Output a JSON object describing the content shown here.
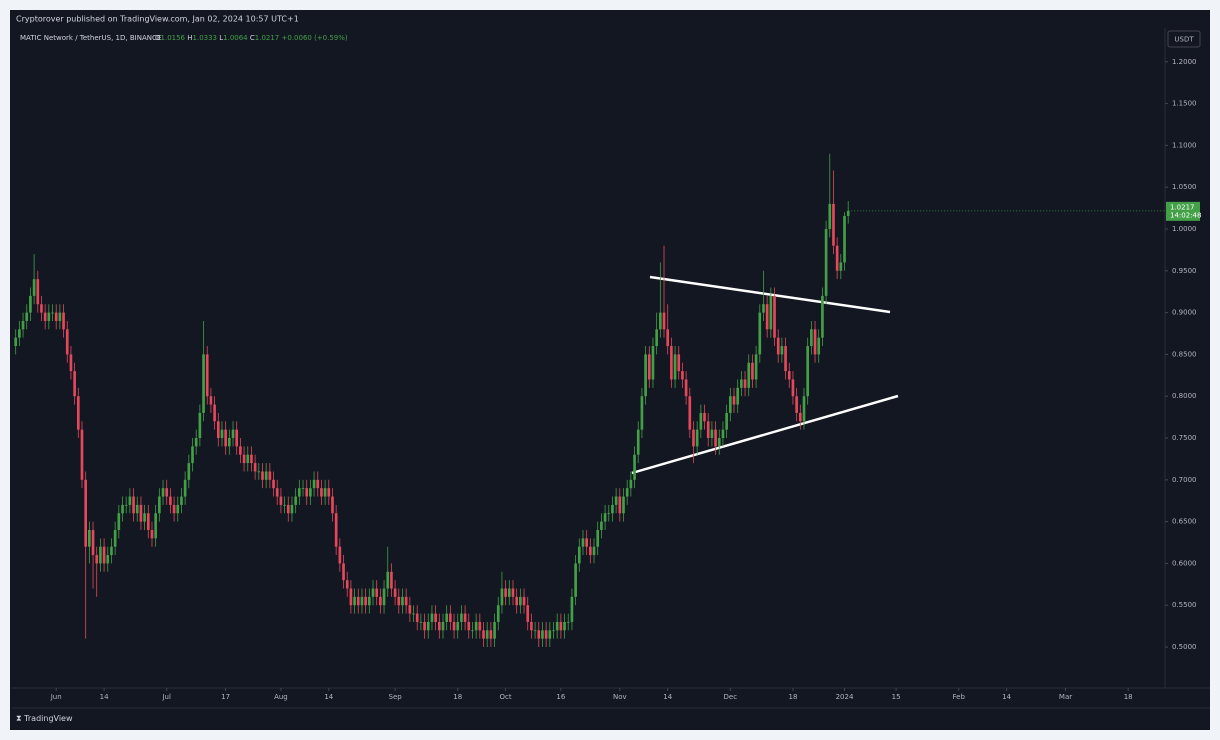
{
  "header": {
    "publisher": "Cryptorover published on TradingView.com, Jan 02, 2024 10:57 UTC+1",
    "symbol": "MATIC Network / TetherUS, 1D, BINANCE",
    "change": "+0.0060 (+0.59%)",
    "currency": "USDT",
    "countdown": "14:02:48",
    "brand": "TradingView"
  },
  "chart_data": {
    "type": "candlestick",
    "up_color": "#43a047",
    "down_color": "#e5485a",
    "grid": false,
    "ylim": [
      0.451,
      1.238
    ],
    "yticks": [
      {
        "value": 0.5,
        "label": "0.5000"
      },
      {
        "value": 0.55,
        "label": "0.5500"
      },
      {
        "value": 0.6,
        "label": "0.6000"
      },
      {
        "value": 0.65,
        "label": "0.6500"
      },
      {
        "value": 0.7,
        "label": "0.7000"
      },
      {
        "value": 0.75,
        "label": "0.7500"
      },
      {
        "value": 0.8,
        "label": "0.8000"
      },
      {
        "value": 0.85,
        "label": "0.8500"
      },
      {
        "value": 0.9,
        "label": "0.9000"
      },
      {
        "value": 0.95,
        "label": "0.9500"
      },
      {
        "value": 1.0,
        "label": "1.0000"
      },
      {
        "value": 1.05,
        "label": "1.0500"
      },
      {
        "value": 1.1,
        "label": "1.1000"
      },
      {
        "value": 1.15,
        "label": "1.1500"
      },
      {
        "value": 1.2,
        "label": "1.2000"
      }
    ],
    "xlim": [
      "2023-05-20",
      "2024-03-28"
    ],
    "xticks": [
      {
        "value": "2023-06-01",
        "label": "Jun"
      },
      {
        "value": "2023-06-14",
        "label": "14"
      },
      {
        "value": "2023-07-01",
        "label": "Jul"
      },
      {
        "value": "2023-07-17",
        "label": "17"
      },
      {
        "value": "2023-08-01",
        "label": "Aug"
      },
      {
        "value": "2023-08-14",
        "label": "14"
      },
      {
        "value": "2023-09-01",
        "label": "Sep"
      },
      {
        "value": "2023-09-18",
        "label": "18"
      },
      {
        "value": "2023-10-01",
        "label": "Oct"
      },
      {
        "value": "2023-10-16",
        "label": "16"
      },
      {
        "value": "2023-11-01",
        "label": "Nov"
      },
      {
        "value": "2023-11-14",
        "label": "14"
      },
      {
        "value": "2023-12-01",
        "label": "Dec"
      },
      {
        "value": "2023-12-18",
        "label": "18"
      },
      {
        "value": "2024-01-01",
        "label": "2024"
      },
      {
        "value": "2024-01-15",
        "label": "15"
      },
      {
        "value": "2024-02-01",
        "label": "Feb"
      },
      {
        "value": "2024-02-14",
        "label": "14"
      },
      {
        "value": "2024-03-01",
        "label": "Mar"
      },
      {
        "value": "2024-03-18",
        "label": "18"
      }
    ],
    "x": [
      "2023-05-21",
      "2023-05-22",
      "2023-05-23",
      "2023-05-24",
      "2023-05-25",
      "2023-05-26",
      "2023-05-27",
      "2023-05-28",
      "2023-05-29",
      "2023-05-30",
      "2023-05-31",
      "2023-06-01",
      "2023-06-02",
      "2023-06-03",
      "2023-06-04",
      "2023-06-05",
      "2023-06-06",
      "2023-06-07",
      "2023-06-08",
      "2023-06-09",
      "2023-06-10",
      "2023-06-11",
      "2023-06-12",
      "2023-06-13",
      "2023-06-14",
      "2023-06-15",
      "2023-06-16",
      "2023-06-17",
      "2023-06-18",
      "2023-06-19",
      "2023-06-20",
      "2023-06-21",
      "2023-06-22",
      "2023-06-23",
      "2023-06-24",
      "2023-06-25",
      "2023-06-26",
      "2023-06-27",
      "2023-06-28",
      "2023-06-29",
      "2023-06-30",
      "2023-07-01",
      "2023-07-02",
      "2023-07-03",
      "2023-07-04",
      "2023-07-05",
      "2023-07-06",
      "2023-07-07",
      "2023-07-08",
      "2023-07-09",
      "2023-07-10",
      "2023-07-11",
      "2023-07-12",
      "2023-07-13",
      "2023-07-14",
      "2023-07-15",
      "2023-07-16",
      "2023-07-17",
      "2023-07-18",
      "2023-07-19",
      "2023-07-20",
      "2023-07-21",
      "2023-07-22",
      "2023-07-23",
      "2023-07-24",
      "2023-07-25",
      "2023-07-26",
      "2023-07-27",
      "2023-07-28",
      "2023-07-29",
      "2023-07-30",
      "2023-07-31",
      "2023-08-01",
      "2023-08-02",
      "2023-08-03",
      "2023-08-04",
      "2023-08-05",
      "2023-08-06",
      "2023-08-07",
      "2023-08-08",
      "2023-08-09",
      "2023-08-10",
      "2023-08-11",
      "2023-08-12",
      "2023-08-13",
      "2023-08-14",
      "2023-08-15",
      "2023-08-16",
      "2023-08-17",
      "2023-08-18",
      "2023-08-19",
      "2023-08-20",
      "2023-08-21",
      "2023-08-22",
      "2023-08-23",
      "2023-08-24",
      "2023-08-25",
      "2023-08-26",
      "2023-08-27",
      "2023-08-28",
      "2023-08-29",
      "2023-08-30",
      "2023-08-31",
      "2023-09-01",
      "2023-09-02",
      "2023-09-03",
      "2023-09-04",
      "2023-09-05",
      "2023-09-06",
      "2023-09-07",
      "2023-09-08",
      "2023-09-09",
      "2023-09-10",
      "2023-09-11",
      "2023-09-12",
      "2023-09-13",
      "2023-09-14",
      "2023-09-15",
      "2023-09-16",
      "2023-09-17",
      "2023-09-18",
      "2023-09-19",
      "2023-09-20",
      "2023-09-21",
      "2023-09-22",
      "2023-09-23",
      "2023-09-24",
      "2023-09-25",
      "2023-09-26",
      "2023-09-27",
      "2023-09-28",
      "2023-09-29",
      "2023-09-30",
      "2023-10-01",
      "2023-10-02",
      "2023-10-03",
      "2023-10-04",
      "2023-10-05",
      "2023-10-06",
      "2023-10-07",
      "2023-10-08",
      "2023-10-09",
      "2023-10-10",
      "2023-10-11",
      "2023-10-12",
      "2023-10-13",
      "2023-10-14",
      "2023-10-15",
      "2023-10-16",
      "2023-10-17",
      "2023-10-18",
      "2023-10-19",
      "2023-10-20",
      "2023-10-21",
      "2023-10-22",
      "2023-10-23",
      "2023-10-24",
      "2023-10-25",
      "2023-10-26",
      "2023-10-27",
      "2023-10-28",
      "2023-10-29",
      "2023-10-30",
      "2023-10-31",
      "2023-11-01",
      "2023-11-02",
      "2023-11-03",
      "2023-11-04",
      "2023-11-05",
      "2023-11-06",
      "2023-11-07",
      "2023-11-08",
      "2023-11-09",
      "2023-11-10",
      "2023-11-11",
      "2023-11-12",
      "2023-11-13",
      "2023-11-14",
      "2023-11-15",
      "2023-11-16",
      "2023-11-17",
      "2023-11-18",
      "2023-11-19",
      "2023-11-20",
      "2023-11-21",
      "2023-11-22",
      "2023-11-23",
      "2023-11-24",
      "2023-11-25",
      "2023-11-26",
      "2023-11-27",
      "2023-11-28",
      "2023-11-29",
      "2023-11-30",
      "2023-12-01",
      "2023-12-02",
      "2023-12-03",
      "2023-12-04",
      "2023-12-05",
      "2023-12-06",
      "2023-12-07",
      "2023-12-08",
      "2023-12-09",
      "2023-12-10",
      "2023-12-11",
      "2023-12-12",
      "2023-12-13",
      "2023-12-14",
      "2023-12-15",
      "2023-12-16",
      "2023-12-17",
      "2023-12-18",
      "2023-12-19",
      "2023-12-20",
      "2023-12-21",
      "2023-12-22",
      "2023-12-23",
      "2023-12-24",
      "2023-12-25",
      "2023-12-26",
      "2023-12-27",
      "2023-12-28",
      "2023-12-29",
      "2023-12-30",
      "2023-12-31",
      "2024-01-01",
      "2024-01-02"
    ],
    "open": [
      0.86,
      0.87,
      0.88,
      0.89,
      0.9,
      0.92,
      0.94,
      0.91,
      0.9,
      0.89,
      0.9,
      0.9,
      0.89,
      0.9,
      0.88,
      0.85,
      0.83,
      0.8,
      0.76,
      0.7,
      0.62,
      0.64,
      0.61,
      0.6,
      0.62,
      0.6,
      0.61,
      0.62,
      0.64,
      0.66,
      0.67,
      0.67,
      0.68,
      0.66,
      0.67,
      0.65,
      0.66,
      0.64,
      0.63,
      0.66,
      0.68,
      0.69,
      0.68,
      0.67,
      0.66,
      0.67,
      0.68,
      0.7,
      0.72,
      0.74,
      0.75,
      0.78,
      0.85,
      0.8,
      0.79,
      0.77,
      0.75,
      0.76,
      0.74,
      0.75,
      0.76,
      0.74,
      0.73,
      0.72,
      0.73,
      0.72,
      0.71,
      0.71,
      0.7,
      0.71,
      0.7,
      0.69,
      0.68,
      0.67,
      0.67,
      0.66,
      0.67,
      0.68,
      0.69,
      0.69,
      0.68,
      0.69,
      0.7,
      0.69,
      0.68,
      0.69,
      0.68,
      0.66,
      0.62,
      0.6,
      0.58,
      0.57,
      0.55,
      0.56,
      0.55,
      0.56,
      0.55,
      0.56,
      0.57,
      0.56,
      0.55,
      0.57,
      0.59,
      0.57,
      0.56,
      0.55,
      0.56,
      0.55,
      0.54,
      0.54,
      0.53,
      0.53,
      0.52,
      0.53,
      0.54,
      0.53,
      0.52,
      0.53,
      0.54,
      0.53,
      0.52,
      0.53,
      0.54,
      0.53,
      0.52,
      0.52,
      0.53,
      0.52,
      0.51,
      0.52,
      0.51,
      0.53,
      0.55,
      0.57,
      0.56,
      0.57,
      0.56,
      0.55,
      0.56,
      0.55,
      0.53,
      0.52,
      0.52,
      0.51,
      0.52,
      0.51,
      0.52,
      0.52,
      0.53,
      0.52,
      0.53,
      0.53,
      0.56,
      0.6,
      0.62,
      0.63,
      0.62,
      0.61,
      0.62,
      0.64,
      0.65,
      0.66,
      0.66,
      0.67,
      0.68,
      0.66,
      0.68,
      0.69,
      0.7,
      0.73,
      0.76,
      0.8,
      0.85,
      0.82,
      0.86,
      0.88,
      0.9,
      0.88,
      0.86,
      0.82,
      0.85,
      0.83,
      0.82,
      0.8,
      0.76,
      0.74,
      0.76,
      0.78,
      0.77,
      0.75,
      0.76,
      0.74,
      0.75,
      0.76,
      0.78,
      0.8,
      0.79,
      0.81,
      0.82,
      0.81,
      0.84,
      0.82,
      0.85,
      0.9,
      0.91,
      0.88,
      0.92,
      0.87,
      0.85,
      0.86,
      0.83,
      0.82,
      0.8,
      0.78,
      0.77,
      0.8,
      0.86,
      0.88,
      0.85,
      0.87,
      0.92,
      1.0,
      1.03,
      0.98,
      0.95,
      0.96,
      1.0156
    ],
    "high": [
      0.88,
      0.89,
      0.9,
      0.91,
      0.93,
      0.97,
      0.95,
      0.92,
      0.91,
      0.91,
      0.91,
      0.91,
      0.91,
      0.91,
      0.89,
      0.86,
      0.84,
      0.81,
      0.77,
      0.71,
      0.65,
      0.65,
      0.62,
      0.63,
      0.63,
      0.62,
      0.63,
      0.65,
      0.67,
      0.68,
      0.68,
      0.69,
      0.69,
      0.68,
      0.68,
      0.67,
      0.67,
      0.65,
      0.67,
      0.69,
      0.7,
      0.7,
      0.69,
      0.68,
      0.68,
      0.69,
      0.71,
      0.73,
      0.75,
      0.76,
      0.79,
      0.89,
      0.86,
      0.81,
      0.8,
      0.78,
      0.77,
      0.77,
      0.76,
      0.77,
      0.77,
      0.75,
      0.74,
      0.74,
      0.74,
      0.73,
      0.72,
      0.72,
      0.72,
      0.72,
      0.71,
      0.7,
      0.69,
      0.68,
      0.68,
      0.68,
      0.69,
      0.7,
      0.7,
      0.7,
      0.7,
      0.71,
      0.71,
      0.7,
      0.7,
      0.7,
      0.69,
      0.67,
      0.63,
      0.61,
      0.59,
      0.58,
      0.57,
      0.57,
      0.57,
      0.57,
      0.57,
      0.58,
      0.58,
      0.57,
      0.58,
      0.62,
      0.6,
      0.58,
      0.57,
      0.57,
      0.57,
      0.56,
      0.55,
      0.55,
      0.54,
      0.54,
      0.54,
      0.55,
      0.55,
      0.54,
      0.54,
      0.55,
      0.55,
      0.54,
      0.54,
      0.55,
      0.55,
      0.54,
      0.53,
      0.54,
      0.54,
      0.53,
      0.53,
      0.53,
      0.54,
      0.56,
      0.59,
      0.58,
      0.58,
      0.58,
      0.57,
      0.57,
      0.57,
      0.56,
      0.54,
      0.53,
      0.53,
      0.53,
      0.53,
      0.53,
      0.53,
      0.54,
      0.54,
      0.54,
      0.54,
      0.57,
      0.61,
      0.63,
      0.64,
      0.64,
      0.63,
      0.63,
      0.65,
      0.66,
      0.67,
      0.67,
      0.68,
      0.69,
      0.69,
      0.69,
      0.7,
      0.71,
      0.74,
      0.77,
      0.81,
      0.86,
      0.86,
      0.87,
      0.9,
      0.96,
      0.98,
      0.91,
      0.87,
      0.86,
      0.86,
      0.84,
      0.83,
      0.81,
      0.77,
      0.77,
      0.79,
      0.79,
      0.78,
      0.77,
      0.77,
      0.76,
      0.77,
      0.79,
      0.81,
      0.81,
      0.82,
      0.83,
      0.83,
      0.85,
      0.85,
      0.86,
      0.91,
      0.95,
      0.92,
      0.93,
      0.93,
      0.88,
      0.87,
      0.87,
      0.84,
      0.83,
      0.81,
      0.79,
      0.81,
      0.87,
      0.89,
      0.89,
      0.88,
      0.93,
      1.01,
      1.09,
      1.07,
      0.99,
      0.97,
      1.02,
      1.0333
    ],
    "low": [
      0.85,
      0.86,
      0.87,
      0.88,
      0.89,
      0.91,
      0.9,
      0.89,
      0.88,
      0.88,
      0.89,
      0.88,
      0.88,
      0.87,
      0.84,
      0.82,
      0.79,
      0.75,
      0.69,
      0.51,
      0.6,
      0.57,
      0.56,
      0.59,
      0.59,
      0.59,
      0.6,
      0.61,
      0.63,
      0.65,
      0.66,
      0.66,
      0.65,
      0.65,
      0.64,
      0.64,
      0.63,
      0.62,
      0.62,
      0.65,
      0.67,
      0.67,
      0.66,
      0.65,
      0.65,
      0.66,
      0.67,
      0.69,
      0.71,
      0.73,
      0.74,
      0.77,
      0.79,
      0.78,
      0.76,
      0.74,
      0.74,
      0.73,
      0.73,
      0.74,
      0.73,
      0.72,
      0.71,
      0.71,
      0.71,
      0.7,
      0.7,
      0.69,
      0.69,
      0.69,
      0.68,
      0.67,
      0.66,
      0.66,
      0.65,
      0.65,
      0.66,
      0.67,
      0.68,
      0.67,
      0.67,
      0.68,
      0.68,
      0.67,
      0.67,
      0.67,
      0.65,
      0.61,
      0.59,
      0.57,
      0.56,
      0.54,
      0.54,
      0.54,
      0.54,
      0.54,
      0.54,
      0.55,
      0.55,
      0.54,
      0.54,
      0.56,
      0.56,
      0.55,
      0.54,
      0.54,
      0.54,
      0.53,
      0.53,
      0.52,
      0.52,
      0.51,
      0.51,
      0.52,
      0.52,
      0.51,
      0.51,
      0.52,
      0.52,
      0.51,
      0.51,
      0.52,
      0.52,
      0.51,
      0.51,
      0.51,
      0.51,
      0.5,
      0.5,
      0.5,
      0.5,
      0.52,
      0.54,
      0.55,
      0.55,
      0.55,
      0.54,
      0.54,
      0.54,
      0.52,
      0.51,
      0.51,
      0.5,
      0.5,
      0.5,
      0.5,
      0.51,
      0.51,
      0.51,
      0.51,
      0.52,
      0.52,
      0.55,
      0.59,
      0.61,
      0.61,
      0.6,
      0.6,
      0.61,
      0.63,
      0.64,
      0.65,
      0.65,
      0.66,
      0.65,
      0.65,
      0.67,
      0.68,
      0.69,
      0.72,
      0.75,
      0.79,
      0.81,
      0.81,
      0.85,
      0.87,
      0.87,
      0.85,
      0.81,
      0.81,
      0.82,
      0.81,
      0.79,
      0.75,
      0.72,
      0.73,
      0.75,
      0.76,
      0.74,
      0.74,
      0.73,
      0.73,
      0.74,
      0.75,
      0.77,
      0.78,
      0.78,
      0.8,
      0.8,
      0.8,
      0.81,
      0.81,
      0.84,
      0.89,
      0.87,
      0.87,
      0.86,
      0.84,
      0.84,
      0.82,
      0.81,
      0.79,
      0.77,
      0.76,
      0.76,
      0.79,
      0.85,
      0.84,
      0.84,
      0.86,
      0.91,
      0.99,
      0.97,
      0.94,
      0.94,
      0.95,
      1.0064
    ],
    "close": [
      0.87,
      0.88,
      0.89,
      0.9,
      0.92,
      0.94,
      0.91,
      0.9,
      0.89,
      0.9,
      0.9,
      0.89,
      0.9,
      0.88,
      0.85,
      0.83,
      0.8,
      0.76,
      0.7,
      0.62,
      0.64,
      0.61,
      0.6,
      0.62,
      0.6,
      0.61,
      0.62,
      0.64,
      0.66,
      0.67,
      0.67,
      0.68,
      0.66,
      0.67,
      0.65,
      0.66,
      0.64,
      0.63,
      0.66,
      0.68,
      0.69,
      0.68,
      0.67,
      0.66,
      0.67,
      0.68,
      0.7,
      0.72,
      0.74,
      0.75,
      0.78,
      0.85,
      0.8,
      0.79,
      0.77,
      0.75,
      0.76,
      0.74,
      0.75,
      0.76,
      0.74,
      0.73,
      0.72,
      0.73,
      0.72,
      0.71,
      0.71,
      0.7,
      0.71,
      0.7,
      0.69,
      0.68,
      0.67,
      0.67,
      0.66,
      0.67,
      0.68,
      0.69,
      0.69,
      0.68,
      0.69,
      0.7,
      0.69,
      0.68,
      0.69,
      0.68,
      0.66,
      0.62,
      0.6,
      0.58,
      0.57,
      0.55,
      0.56,
      0.55,
      0.56,
      0.55,
      0.56,
      0.57,
      0.56,
      0.55,
      0.57,
      0.59,
      0.57,
      0.56,
      0.55,
      0.56,
      0.55,
      0.54,
      0.54,
      0.53,
      0.53,
      0.52,
      0.53,
      0.54,
      0.53,
      0.52,
      0.53,
      0.54,
      0.53,
      0.52,
      0.53,
      0.54,
      0.53,
      0.52,
      0.52,
      0.53,
      0.52,
      0.51,
      0.52,
      0.51,
      0.53,
      0.55,
      0.57,
      0.56,
      0.57,
      0.56,
      0.55,
      0.56,
      0.55,
      0.53,
      0.52,
      0.52,
      0.51,
      0.52,
      0.51,
      0.52,
      0.52,
      0.53,
      0.52,
      0.53,
      0.53,
      0.56,
      0.6,
      0.62,
      0.63,
      0.62,
      0.61,
      0.62,
      0.64,
      0.65,
      0.66,
      0.66,
      0.67,
      0.68,
      0.66,
      0.68,
      0.69,
      0.7,
      0.73,
      0.76,
      0.8,
      0.85,
      0.82,
      0.86,
      0.88,
      0.9,
      0.88,
      0.86,
      0.82,
      0.85,
      0.83,
      0.82,
      0.8,
      0.76,
      0.74,
      0.76,
      0.78,
      0.77,
      0.75,
      0.76,
      0.74,
      0.75,
      0.76,
      0.78,
      0.8,
      0.79,
      0.81,
      0.82,
      0.81,
      0.84,
      0.82,
      0.85,
      0.9,
      0.91,
      0.88,
      0.92,
      0.87,
      0.85,
      0.86,
      0.83,
      0.82,
      0.8,
      0.78,
      0.77,
      0.8,
      0.86,
      0.88,
      0.85,
      0.87,
      0.92,
      1.0,
      1.03,
      0.98,
      0.95,
      0.96,
      1.0156,
      1.0217
    ]
  }
}
